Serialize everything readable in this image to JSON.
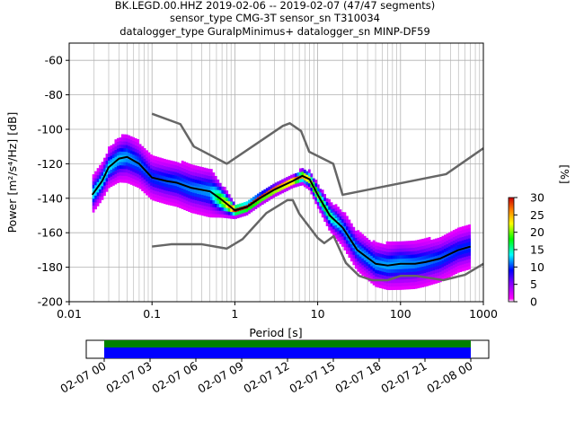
{
  "title_lines": [
    "BK.LEGD.00.HHZ   2019-02-06 -- 2019-02-07  (47/47 segments)",
    "sensor_type CMG-3T sensor_sn T310034",
    "datalogger_type GuralpMinimus+ datalogger_sn MINP-DF59"
  ],
  "chart_data": {
    "type": "heatmap",
    "subtype": "probabilistic power spectral density",
    "xlabel": "Period [s]",
    "xscale": "log",
    "xlim": [
      0.01,
      1000
    ],
    "x_ticks": [
      {
        "value": 0.01,
        "label": "0.01"
      },
      {
        "value": 0.1,
        "label": "0.1"
      },
      {
        "value": 1,
        "label": "1"
      },
      {
        "value": 10,
        "label": "10"
      },
      {
        "value": 100,
        "label": "100"
      },
      {
        "value": 1000,
        "label": "1000"
      }
    ],
    "ylabel": "Power [m²/s⁴/Hz] [dB]",
    "ylim": [
      -200,
      -50
    ],
    "y_ticks": [
      -60,
      -80,
      -100,
      -120,
      -140,
      -160,
      -180,
      -200
    ],
    "grid": true,
    "colorbar": {
      "label": "[%]",
      "ticks": [
        0,
        5,
        10,
        15,
        20,
        25,
        30
      ],
      "range": [
        0,
        30
      ],
      "colors": [
        "#ffffff",
        "#ff00ff",
        "#0000ff",
        "#00ffff",
        "#00ff00",
        "#ffff00",
        "#ff8000",
        "#cc0000"
      ]
    },
    "series": [
      {
        "role": "mean",
        "color": "#000000",
        "points": [
          [
            0.019,
            -138
          ],
          [
            0.025,
            -130
          ],
          [
            0.03,
            -122
          ],
          [
            0.04,
            -117
          ],
          [
            0.05,
            -116
          ],
          [
            0.07,
            -120
          ],
          [
            0.1,
            -128
          ],
          [
            0.15,
            -130
          ],
          [
            0.2,
            -131
          ],
          [
            0.3,
            -134
          ],
          [
            0.5,
            -136
          ],
          [
            0.7,
            -141
          ],
          [
            1,
            -147
          ],
          [
            1.4,
            -145
          ],
          [
            2,
            -140
          ],
          [
            3,
            -135
          ],
          [
            5,
            -130
          ],
          [
            6.5,
            -127
          ],
          [
            8,
            -129
          ],
          [
            10,
            -138
          ],
          [
            14,
            -150
          ],
          [
            20,
            -157
          ],
          [
            30,
            -170
          ],
          [
            50,
            -178
          ],
          [
            70,
            -179
          ],
          [
            100,
            -178
          ],
          [
            150,
            -178
          ],
          [
            200,
            -177
          ],
          [
            300,
            -175
          ],
          [
            500,
            -170
          ],
          [
            700,
            -168
          ]
        ]
      },
      {
        "role": "new-high-noise-model",
        "color": "#666666",
        "points": [
          [
            0.1,
            -91
          ],
          [
            0.22,
            -97
          ],
          [
            0.32,
            -110
          ],
          [
            0.8,
            -120
          ],
          [
            3.8,
            -98
          ],
          [
            4.6,
            -96.5
          ],
          [
            6.3,
            -101
          ],
          [
            7.9,
            -113
          ],
          [
            15.4,
            -120
          ],
          [
            20,
            -138
          ],
          [
            354.8,
            -126
          ],
          [
            1000,
            -111
          ]
        ]
      },
      {
        "role": "new-low-noise-model",
        "color": "#666666",
        "points": [
          [
            0.1,
            -168
          ],
          [
            0.17,
            -166.7
          ],
          [
            0.4,
            -166.7
          ],
          [
            0.8,
            -169.2
          ],
          [
            1.24,
            -163.7
          ],
          [
            2.4,
            -148.6
          ],
          [
            4.3,
            -141.1
          ],
          [
            5,
            -141.1
          ],
          [
            6,
            -149
          ],
          [
            10,
            -163
          ],
          [
            12,
            -166
          ],
          [
            15.6,
            -162
          ],
          [
            21.9,
            -177.5
          ],
          [
            31.6,
            -185
          ],
          [
            45,
            -187.5
          ],
          [
            70,
            -187.5
          ],
          [
            101,
            -185
          ],
          [
            154,
            -185
          ],
          [
            328,
            -187.5
          ],
          [
            600,
            -184.4
          ],
          [
            1000,
            -178
          ]
        ]
      }
    ],
    "density_samples": [
      {
        "period": 0.025,
        "spread_db": 10,
        "max_pct": 14
      },
      {
        "period": 0.05,
        "spread_db": 14,
        "max_pct": 12
      },
      {
        "period": 0.1,
        "spread_db": 12,
        "max_pct": 10
      },
      {
        "period": 0.5,
        "spread_db": 14,
        "max_pct": 12
      },
      {
        "period": 1,
        "spread_db": 4,
        "max_pct": 30
      },
      {
        "period": 5,
        "spread_db": 3,
        "max_pct": 30
      },
      {
        "period": 20,
        "spread_db": 10,
        "max_pct": 12
      },
      {
        "period": 100,
        "spread_db": 14,
        "max_pct": 12
      },
      {
        "period": 500,
        "spread_db": 12,
        "max_pct": 10
      }
    ]
  },
  "coverage": {
    "x_ticks": [
      "02-07 00",
      "02-07 03",
      "02-07 06",
      "02-07 09",
      "02-07 12",
      "02-07 15",
      "02-07 18",
      "02-07 21",
      "02-08 00"
    ],
    "bar_colors": [
      "#008000",
      "#0000ff"
    ]
  }
}
